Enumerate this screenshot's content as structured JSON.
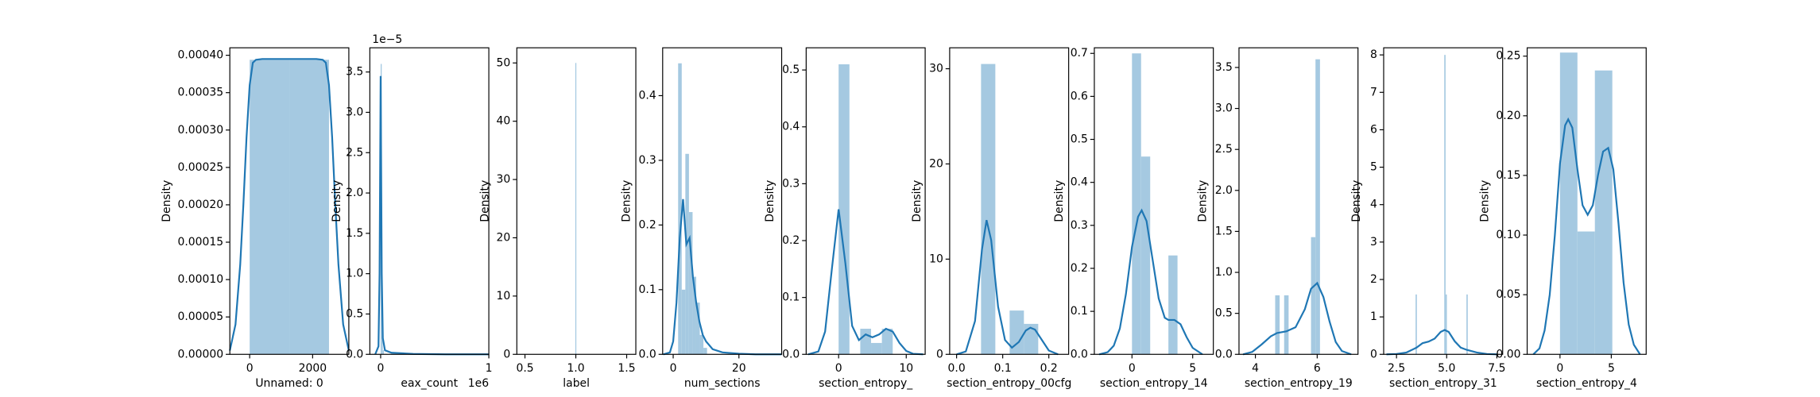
{
  "chart_data": [
    {
      "type": "histogram",
      "xlabel": "Unnamed: 0",
      "ylabel": "Density",
      "bins": [
        0,
        1260,
        2520
      ],
      "counts": [
        0.000394,
        0.000394
      ],
      "kde": {
        "x": [
          -630,
          -450,
          -300,
          -200,
          -100,
          0,
          100,
          200,
          400,
          1260,
          2120,
          2320,
          2420,
          2520,
          2620,
          2720,
          2820,
          2970,
          3150
        ],
        "y": [
          5e-06,
          4e-05,
          0.00012,
          0.0002,
          0.00029,
          0.00036,
          0.00039,
          0.000394,
          0.000395,
          0.000395,
          0.000395,
          0.000394,
          0.00039,
          0.00036,
          0.00029,
          0.0002,
          0.00012,
          4e-05,
          5e-06
        ]
      },
      "xlim": [
        -630,
        3150
      ],
      "ylim": [
        0,
        0.00041
      ],
      "xticks": [
        0,
        2000
      ],
      "yticks": [
        {
          "value": 0,
          "label": "0.00000"
        },
        {
          "value": 5e-05,
          "label": "0.00005"
        },
        {
          "value": 0.0001,
          "label": "0.00010"
        },
        {
          "value": 0.00015,
          "label": "0.00015"
        },
        {
          "value": 0.0002,
          "label": "0.00020"
        },
        {
          "value": 0.00025,
          "label": "0.00025"
        },
        {
          "value": 0.0003,
          "label": "0.00030"
        },
        {
          "value": 0.00035,
          "label": "0.00035"
        },
        {
          "value": 0.0004,
          "label": "0.00040"
        }
      ],
      "bar_color": "#a5c9e1",
      "line_color": "#1f77b4"
    },
    {
      "type": "histogram",
      "xlabel": "eax_count",
      "ylabel": "Density",
      "y_offset_text": "1e−5",
      "x_offset_text": "1e6",
      "bins": [
        0,
        0.01,
        0.02,
        0.03
      ],
      "counts": [
        3.6,
        0.3,
        0.05
      ],
      "kde": {
        "x": [
          -0.05,
          -0.02,
          -0.01,
          0,
          0.01,
          0.02,
          0.04,
          0.1,
          0.3,
          0.6,
          1.0
        ],
        "y": [
          0,
          0.1,
          1.0,
          3.45,
          1.0,
          0.2,
          0.05,
          0.02,
          0.005,
          0,
          0
        ]
      },
      "xlim": [
        -0.1,
        1.0
      ],
      "ylim": [
        0,
        3.8
      ],
      "xticks": [
        0,
        1
      ],
      "yticks": [
        {
          "value": 0,
          "label": "0.0"
        },
        0.5,
        {
          "value": 1,
          "label": "1.0"
        },
        1.5,
        {
          "value": 2,
          "label": "2.0"
        },
        2.5,
        {
          "value": 3,
          "label": "3.0"
        },
        3.5
      ],
      "bar_color": "#a5c9e1",
      "line_color": "#1f77b4"
    },
    {
      "type": "histogram",
      "xlabel": "label",
      "ylabel": "Density",
      "bins": [
        0.995,
        1.005
      ],
      "counts": [
        50
      ],
      "xlim": [
        0.42,
        1.59
      ],
      "ylim": [
        0,
        52.6
      ],
      "xticks": [
        0.5,
        {
          "value": 1,
          "label": "1.0"
        },
        1.5
      ],
      "yticks": [
        0,
        10,
        20,
        30,
        40,
        50
      ],
      "bar_color": "#a5c9e1",
      "line_color": "#1f77b4"
    },
    {
      "type": "histogram",
      "xlabel": "num_sections",
      "ylabel": "Density",
      "bins": [
        1.5,
        2.6,
        3.7,
        4.8,
        5.9,
        7.0,
        8.1,
        9.2,
        10.3
      ],
      "counts": [
        0.45,
        0.1,
        0.31,
        0.22,
        0.12,
        0.08,
        0.03,
        0.01
      ],
      "kde": {
        "x": [
          -3,
          -1,
          0,
          1,
          2,
          3,
          4,
          5,
          6,
          7,
          8,
          9,
          10,
          12,
          15,
          20,
          25,
          33
        ],
        "y": [
          0,
          0.003,
          0.02,
          0.08,
          0.18,
          0.24,
          0.17,
          0.18,
          0.12,
          0.08,
          0.05,
          0.03,
          0.02,
          0.008,
          0.003,
          0.001,
          0,
          0
        ]
      },
      "xlim": [
        -3.2,
        33
      ],
      "ylim": [
        0,
        0.474
      ],
      "xticks": [
        0,
        20
      ],
      "yticks": [
        {
          "value": 0,
          "label": "0.0"
        },
        0.1,
        0.2,
        0.3,
        0.4
      ],
      "bar_color": "#a5c9e1",
      "line_color": "#1f77b4"
    },
    {
      "type": "histogram",
      "xlabel": "section_entropy_",
      "ylabel": "Density",
      "bins": [
        0,
        1.6,
        3.2,
        4.8,
        6.4,
        8.0
      ],
      "counts": [
        0.51,
        0,
        0.045,
        0.02,
        0.045
      ],
      "kde": {
        "x": [
          -4.5,
          -3,
          -2,
          -1,
          0,
          1,
          2,
          3,
          4,
          5,
          6,
          7,
          8,
          9,
          10,
          11,
          12.5
        ],
        "y": [
          0,
          0.005,
          0.04,
          0.15,
          0.255,
          0.16,
          0.05,
          0.025,
          0.035,
          0.03,
          0.035,
          0.045,
          0.04,
          0.02,
          0.006,
          0.001,
          0
        ]
      },
      "xlim": [
        -4.8,
        12.8
      ],
      "ylim": [
        0,
        0.539
      ],
      "xticks": [
        0,
        10
      ],
      "yticks": [
        {
          "value": 0,
          "label": "0.0"
        },
        0.1,
        0.2,
        0.3,
        0.4,
        0.5
      ],
      "bar_color": "#a5c9e1",
      "line_color": "#1f77b4"
    },
    {
      "type": "histogram",
      "xlabel": "section_entropy_00cfg",
      "ylabel": "Density",
      "bins": [
        0.053,
        0.084,
        0.115,
        0.146,
        0.177
      ],
      "counts": [
        30.5,
        0,
        4.6,
        3.2
      ],
      "kde": {
        "x": [
          0,
          0.02,
          0.04,
          0.055,
          0.065,
          0.075,
          0.09,
          0.105,
          0.12,
          0.135,
          0.15,
          0.16,
          0.17,
          0.185,
          0.2,
          0.22
        ],
        "y": [
          0,
          0.3,
          3.5,
          11,
          14.1,
          12,
          5,
          1.5,
          0.7,
          1.3,
          2.5,
          2.8,
          2.6,
          1.5,
          0.4,
          0
        ]
      },
      "xlim": [
        -0.015,
        0.243
      ],
      "ylim": [
        0,
        32.2
      ],
      "xticks": [
        {
          "value": 0,
          "label": "0.0"
        },
        0.1,
        0.2
      ],
      "yticks": [
        0,
        10,
        20,
        30
      ],
      "bar_color": "#a5c9e1",
      "line_color": "#1f77b4"
    },
    {
      "type": "histogram",
      "xlabel": "section_entropy_14",
      "ylabel": "Density",
      "bins": [
        0,
        0.75,
        1.5,
        2.25,
        3.0,
        3.75
      ],
      "counts": [
        0.7,
        0.46,
        0,
        0,
        0.23
      ],
      "kde": {
        "x": [
          -2.7,
          -2,
          -1.5,
          -1,
          -0.5,
          0,
          0.5,
          0.8,
          1.2,
          1.7,
          2.2,
          2.7,
          3.0,
          3.5,
          4,
          4.5,
          5,
          5.8
        ],
        "y": [
          0,
          0.005,
          0.02,
          0.06,
          0.14,
          0.25,
          0.32,
          0.335,
          0.31,
          0.22,
          0.13,
          0.085,
          0.08,
          0.08,
          0.07,
          0.04,
          0.015,
          0
        ]
      },
      "xlim": [
        -3.1,
        6.7
      ],
      "ylim": [
        0,
        0.713
      ],
      "xticks": [
        0,
        5
      ],
      "yticks": [
        {
          "value": 0,
          "label": "0.0"
        },
        0.1,
        0.2,
        0.3,
        0.4,
        0.5,
        0.6,
        0.7
      ],
      "bar_color": "#a5c9e1",
      "line_color": "#1f77b4"
    },
    {
      "type": "histogram",
      "xlabel": "section_entropy_19",
      "ylabel": "Density",
      "bins": [
        4.64,
        4.785,
        4.93,
        5.075,
        5.22,
        5.365,
        5.51,
        5.655,
        5.8,
        5.945,
        6.09
      ],
      "counts": [
        0.72,
        0,
        0.72,
        0,
        0,
        0,
        0,
        0,
        1.43,
        3.6
      ],
      "kde": {
        "x": [
          3.6,
          3.9,
          4.2,
          4.5,
          4.7,
          5.0,
          5.3,
          5.6,
          5.8,
          6.0,
          6.2,
          6.4,
          6.6,
          6.8,
          7.1
        ],
        "y": [
          0,
          0.03,
          0.12,
          0.22,
          0.26,
          0.28,
          0.33,
          0.55,
          0.8,
          0.87,
          0.7,
          0.4,
          0.15,
          0.04,
          0
        ]
      },
      "xlim": [
        3.47,
        7.32
      ],
      "ylim": [
        0,
        3.74
      ],
      "xticks": [
        4,
        6
      ],
      "yticks": [
        {
          "value": 0,
          "label": "0.0"
        },
        0.5,
        {
          "value": 1,
          "label": "1.0"
        },
        1.5,
        {
          "value": 2,
          "label": "2.0"
        },
        2.5,
        {
          "value": 3,
          "label": "3.0"
        },
        3.5
      ],
      "bar_color": "#a5c9e1",
      "line_color": "#1f77b4"
    },
    {
      "type": "histogram",
      "xlabel": "section_entropy_31",
      "ylabel": "Density",
      "bins": [
        3.45,
        3.515,
        3.58,
        3.645,
        3.71,
        3.775,
        3.84,
        3.905,
        3.97,
        4.035,
        4.1,
        4.165,
        4.23,
        4.295,
        4.36,
        4.425,
        4.49,
        4.555,
        4.62,
        4.685,
        4.75,
        4.815,
        4.88,
        4.945,
        5.01,
        5.075,
        5.14,
        5.205,
        5.27,
        5.335,
        5.4,
        5.465,
        5.53,
        5.595,
        5.66,
        5.725,
        5.79,
        5.855,
        5.92,
        5.985,
        6.05
      ],
      "counts": [
        1.6,
        0,
        0,
        0,
        0,
        0,
        0,
        0,
        0,
        0,
        0,
        0,
        0,
        0,
        0,
        0,
        0,
        0,
        0,
        0,
        0,
        0,
        8.0,
        1.6,
        0,
        0,
        0,
        0,
        0,
        0,
        0,
        0,
        0,
        0,
        0,
        0,
        0,
        0,
        0,
        1.6
      ],
      "kde": {
        "x": [
          2.0,
          2.5,
          3.0,
          3.5,
          3.8,
          4.1,
          4.4,
          4.7,
          4.9,
          5.1,
          5.4,
          5.7,
          6.0,
          6.5,
          7.0,
          7.5
        ],
        "y": [
          0,
          0.01,
          0.05,
          0.18,
          0.3,
          0.34,
          0.42,
          0.6,
          0.65,
          0.6,
          0.35,
          0.18,
          0.12,
          0.05,
          0.01,
          0
        ]
      },
      "xlim": [
        1.86,
        7.79
      ],
      "ylim": [
        0,
        8.19
      ],
      "xticks": [
        2.5,
        {
          "value": 5,
          "label": "5.0"
        },
        7.5
      ],
      "yticks": [
        0,
        1,
        2,
        3,
        4,
        5,
        6,
        7,
        8
      ],
      "bar_color": "#a5c9e1",
      "line_color": "#1f77b4"
    },
    {
      "type": "histogram",
      "xlabel": "section_entropy_4",
      "ylabel": "Density",
      "bins": [
        0,
        1.7,
        3.4,
        5.1
      ],
      "counts": [
        0.253,
        0.103,
        0.238
      ],
      "kde": {
        "x": [
          -2.6,
          -2,
          -1.5,
          -1,
          -0.5,
          0,
          0.5,
          0.8,
          1.2,
          1.7,
          2.2,
          2.7,
          3.2,
          3.7,
          4.2,
          4.7,
          5.2,
          5.7,
          6.2,
          6.7,
          7.2,
          7.8
        ],
        "y": [
          0,
          0.005,
          0.02,
          0.05,
          0.1,
          0.16,
          0.192,
          0.197,
          0.19,
          0.155,
          0.125,
          0.117,
          0.125,
          0.15,
          0.17,
          0.173,
          0.155,
          0.11,
          0.06,
          0.025,
          0.008,
          0
        ]
      },
      "xlim": [
        -3.2,
        8.4
      ],
      "ylim": [
        0,
        0.257
      ],
      "xticks": [
        {
          "value": 0,
          "label": "0"
        },
        5
      ],
      "yticks": [
        {
          "value": 0,
          "label": "0.00"
        },
        0.05,
        {
          "value": 0.1,
          "label": "0.10"
        },
        0.15,
        {
          "value": 0.2,
          "label": "0.20"
        },
        0.25
      ],
      "bar_color": "#a5c9e1",
      "line_color": "#1f77b4"
    }
  ]
}
